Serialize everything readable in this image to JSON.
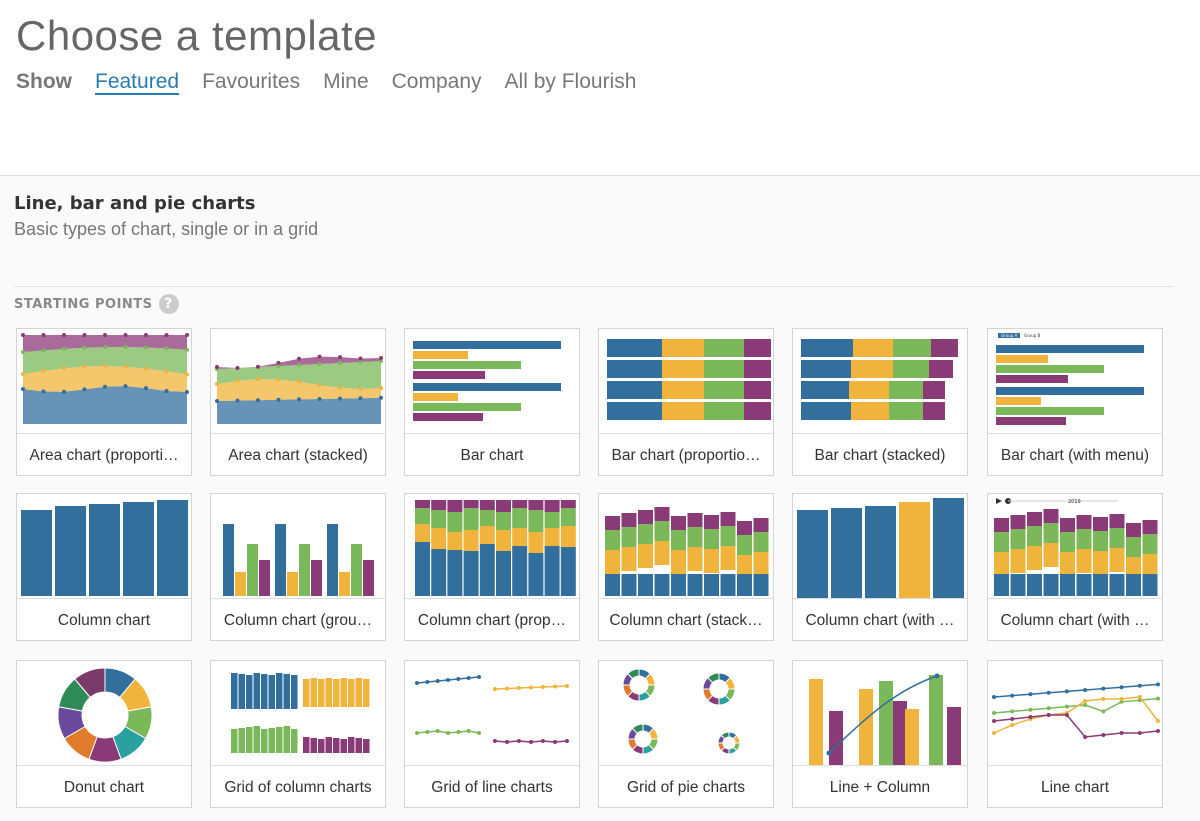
{
  "header": {
    "title": "Choose a template",
    "show_label": "Show",
    "tabs": [
      {
        "label": "Featured",
        "active": true
      },
      {
        "label": "Favourites",
        "active": false
      },
      {
        "label": "Mine",
        "active": false
      },
      {
        "label": "Company",
        "active": false
      },
      {
        "label": "All by Flourish",
        "active": false
      }
    ]
  },
  "section": {
    "title": "Line, bar and pie charts",
    "subtitle": "Basic types of chart, single or in a grid",
    "group_label": "STARTING POINTS",
    "help_icon": "?",
    "cards": [
      {
        "label": "Area chart (proporti…"
      },
      {
        "label": "Area chart (stacked)"
      },
      {
        "label": "Bar chart"
      },
      {
        "label": "Bar chart (proportio…"
      },
      {
        "label": "Bar chart (stacked)"
      },
      {
        "label": "Bar chart (with menu)"
      },
      {
        "label": "Column chart"
      },
      {
        "label": "Column chart (grou…"
      },
      {
        "label": "Column chart (prop…"
      },
      {
        "label": "Column chart (stack…"
      },
      {
        "label": "Column chart (with …"
      },
      {
        "label": "Column chart (with …"
      },
      {
        "label": "Donut chart"
      },
      {
        "label": "Grid of column charts"
      },
      {
        "label": "Grid of line charts"
      },
      {
        "label": "Grid of pie charts"
      },
      {
        "label": "Line + Column"
      },
      {
        "label": "Line chart"
      }
    ]
  }
}
